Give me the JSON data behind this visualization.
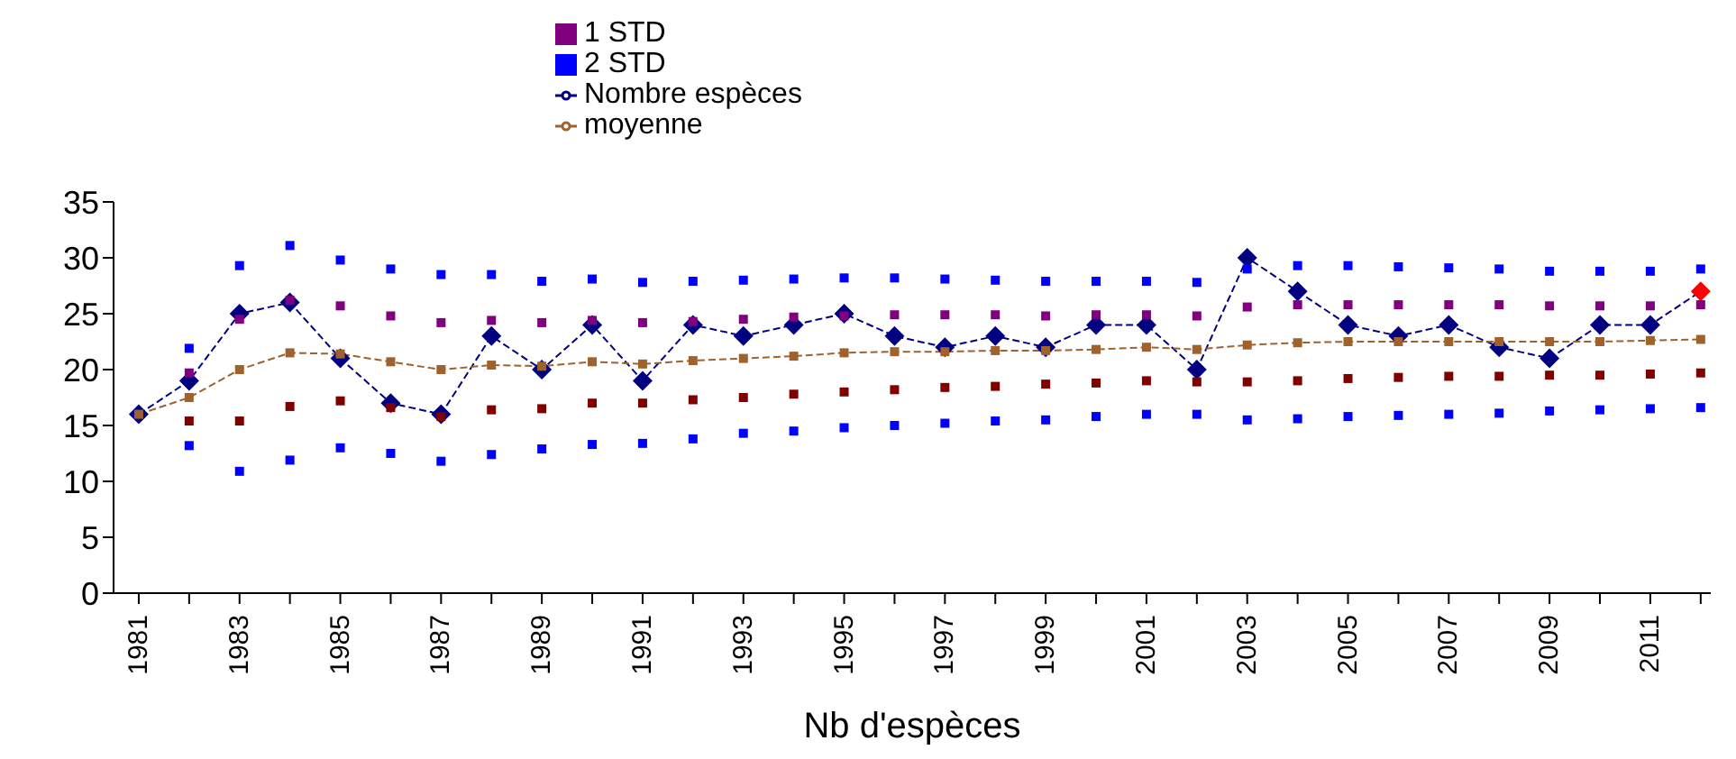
{
  "chart_data": {
    "type": "line",
    "xlabel": "Nb d'espèces",
    "x": [
      1981,
      1982,
      1983,
      1984,
      1985,
      1986,
      1987,
      1988,
      1989,
      1990,
      1991,
      1992,
      1993,
      1994,
      1995,
      1996,
      1997,
      1998,
      1999,
      2000,
      2001,
      2002,
      2003,
      2004,
      2005,
      2006,
      2007,
      2008,
      2009,
      2010,
      2011,
      2012
    ],
    "xlim": [
      1980.5,
      2012.2
    ],
    "xticks": [
      1981,
      {
        "value": 1982,
        "label": null
      },
      1983,
      {
        "value": 1984,
        "label": null
      },
      1985,
      {
        "value": 1986,
        "label": null
      },
      1987,
      {
        "value": 1988,
        "label": null
      },
      1989,
      {
        "value": 1990,
        "label": null
      },
      1991,
      {
        "value": 1992,
        "label": null
      },
      1993,
      {
        "value": 1994,
        "label": null
      },
      1995,
      {
        "value": 1996,
        "label": null
      },
      1997,
      {
        "value": 1998,
        "label": null
      },
      1999,
      {
        "value": 2000,
        "label": null
      },
      2001,
      {
        "value": 2002,
        "label": null
      },
      2003,
      {
        "value": 2004,
        "label": null
      },
      2005,
      {
        "value": 2006,
        "label": null
      },
      2007,
      {
        "value": 2008,
        "label": null
      },
      2009,
      {
        "value": 2010,
        "label": null
      },
      2011,
      {
        "value": 2012,
        "label": null
      }
    ],
    "ylim": [
      0,
      35
    ],
    "yticks": [
      0,
      5,
      10,
      15,
      20,
      25,
      30,
      35
    ],
    "legend": "top",
    "series": [
      {
        "name": "Nombre espèces",
        "color": "#000080",
        "marker": "diamond",
        "line_style": "dashed",
        "values": [
          16,
          19,
          25,
          26,
          21,
          17,
          16,
          23,
          20,
          24,
          19,
          24,
          23,
          24,
          25,
          23,
          22,
          23,
          22,
          24,
          24,
          20,
          30,
          27,
          24,
          23,
          24,
          22,
          21,
          24,
          24,
          27
        ],
        "colors": [
          "#000080",
          "#000080",
          "#000080",
          "#000080",
          "#000080",
          "#000080",
          "#000080",
          "#000080",
          "#000080",
          "#000080",
          "#000080",
          "#000080",
          "#000080",
          "#000080",
          "#000080",
          "#000080",
          "#000080",
          "#000080",
          "#000080",
          "#000080",
          "#000080",
          "#000080",
          "#000080",
          "#000080",
          "#000080",
          "#000080",
          "#000080",
          "#000080",
          "#000080",
          "#000080",
          "#000080",
          "#ff0000"
        ]
      },
      {
        "name": "moyenne",
        "color": "#a0622d",
        "marker": "square",
        "line_style": "dashed",
        "values": [
          16,
          17.5,
          20,
          21.5,
          21.4,
          20.7,
          20,
          20.4,
          20.3,
          20.7,
          20.5,
          20.8,
          21,
          21.2,
          21.5,
          21.6,
          21.6,
          21.7,
          21.7,
          21.8,
          22,
          21.8,
          22.2,
          22.4,
          22.5,
          22.5,
          22.5,
          22.5,
          22.5,
          22.5,
          22.6,
          22.7
        ]
      },
      {
        "name": "2 STD",
        "type": "scatter",
        "color": "#0000ff",
        "marker": "square",
        "x": [
          1982,
          1983,
          1984,
          1985,
          1986,
          1987,
          1988,
          1989,
          1990,
          1991,
          1992,
          1993,
          1994,
          1995,
          1996,
          1997,
          1998,
          1999,
          2000,
          2001,
          2002,
          2003,
          2004,
          2005,
          2006,
          2007,
          2008,
          2009,
          2010,
          2011,
          2012
        ],
        "values": [
          21.9,
          29.3,
          31.1,
          29.8,
          29,
          28.5,
          28.5,
          27.9,
          28.1,
          27.8,
          27.9,
          28,
          28.1,
          28.2,
          28.2,
          28.1,
          28,
          27.9,
          27.9,
          27.9,
          27.8,
          29,
          29.3,
          29.3,
          29.2,
          29.1,
          29,
          28.8,
          28.8,
          28.8,
          29
        ]
      },
      {
        "type": "scatter",
        "color": "#0000ff",
        "marker": "square",
        "x": [
          1982,
          1983,
          1984,
          1985,
          1986,
          1987,
          1988,
          1989,
          1990,
          1991,
          1992,
          1993,
          1994,
          1995,
          1996,
          1997,
          1998,
          1999,
          2000,
          2001,
          2002,
          2003,
          2004,
          2005,
          2006,
          2007,
          2008,
          2009,
          2010,
          2011,
          2012
        ],
        "values": [
          13.2,
          10.9,
          11.9,
          13,
          12.5,
          11.8,
          12.4,
          12.9,
          13.3,
          13.4,
          13.8,
          14.3,
          14.5,
          14.8,
          15,
          15.2,
          15.4,
          15.5,
          15.8,
          16,
          16,
          15.5,
          15.6,
          15.8,
          15.9,
          16,
          16.1,
          16.3,
          16.4,
          16.5,
          16.6
        ]
      },
      {
        "name": "1 STD",
        "type": "scatter",
        "color": "#800080",
        "marker": "square",
        "x": [
          1982,
          1983,
          1984,
          1985,
          1986,
          1987,
          1988,
          1989,
          1990,
          1991,
          1992,
          1993,
          1994,
          1995,
          1996,
          1997,
          1998,
          1999,
          2000,
          2001,
          2002,
          2003,
          2004,
          2005,
          2006,
          2007,
          2008,
          2009,
          2010,
          2011,
          2012
        ],
        "values": [
          19.7,
          24.5,
          26.2,
          25.7,
          24.8,
          24.2,
          24.4,
          24.2,
          24.4,
          24.2,
          24.3,
          24.5,
          24.7,
          24.8,
          24.9,
          24.9,
          24.9,
          24.8,
          24.9,
          24.9,
          24.8,
          25.6,
          25.8,
          25.8,
          25.8,
          25.8,
          25.8,
          25.7,
          25.7,
          25.7,
          25.8
        ]
      },
      {
        "type": "scatter",
        "color": "#800000",
        "marker": "square",
        "x": [
          1982,
          1983,
          1984,
          1985,
          1986,
          1987,
          1988,
          1989,
          1990,
          1991,
          1992,
          1993,
          1994,
          1995,
          1996,
          1997,
          1998,
          1999,
          2000,
          2001,
          2002,
          2003,
          2004,
          2005,
          2006,
          2007,
          2008,
          2009,
          2010,
          2011,
          2012
        ],
        "values": [
          15.4,
          15.4,
          16.7,
          17.2,
          16.6,
          15.8,
          16.4,
          16.5,
          17,
          17,
          17.3,
          17.5,
          17.8,
          18,
          18.2,
          18.4,
          18.5,
          18.7,
          18.8,
          19,
          18.9,
          18.9,
          19,
          19.2,
          19.3,
          19.4,
          19.4,
          19.5,
          19.5,
          19.6,
          19.7
        ]
      }
    ]
  }
}
